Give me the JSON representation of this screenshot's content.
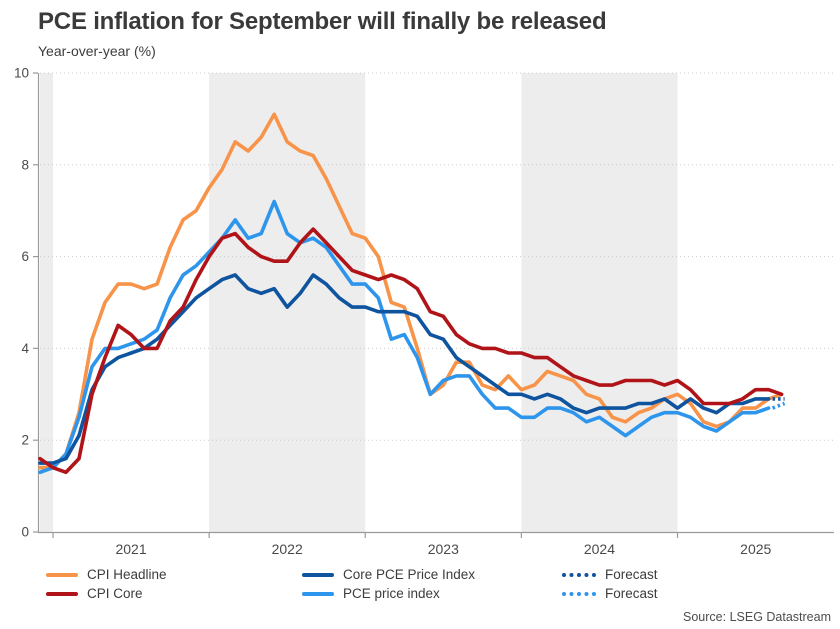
{
  "title": "PCE inflation for September will finally be released",
  "subtitle": "Year-over-year (%)",
  "source": "Source: LSEG Datastream",
  "colors": {
    "cpi_headline": "#f7944a",
    "cpi_core": "#b01418",
    "core_pce": "#0f549e",
    "pce": "#2e95ec",
    "band": "#ededed",
    "gridline": "#cccccc",
    "axis": "#9a9a9a",
    "tick_label": "#4a4a4a"
  },
  "legend": [
    {
      "label": "CPI Headline",
      "color": "#f7944a",
      "style": "solid"
    },
    {
      "label": "CPI Core",
      "color": "#b01418",
      "style": "solid"
    },
    {
      "label": "Core PCE Price Index",
      "color": "#0f549e",
      "style": "solid"
    },
    {
      "label": "PCE price index",
      "color": "#2e95ec",
      "style": "solid"
    },
    {
      "label": "Forecast",
      "color": "#0f549e",
      "style": "dotted"
    },
    {
      "label": "Forecast",
      "color": "#2e95ec",
      "style": "dotted"
    }
  ],
  "chart_data": {
    "type": "line",
    "title": "PCE inflation for September will finally be released",
    "ylabel": "Year-over-year (%)",
    "ylim": [
      0,
      10
    ],
    "y_ticks": [
      0,
      2,
      4,
      6,
      8,
      10
    ],
    "x_start_month": "2020-12",
    "x_end_month": "2025-09",
    "x_year_tick_labels": [
      "2021",
      "2022",
      "2023",
      "2024",
      "2025"
    ],
    "x_year_tick_month_idx": [
      1,
      13,
      25,
      37,
      49
    ],
    "shaded_band_month_idx": [
      [
        0,
        1
      ],
      [
        13,
        25
      ],
      [
        37,
        49
      ]
    ],
    "grid": "dotted-horizontal",
    "legend_position": "bottom",
    "series": [
      {
        "name": "CPI Headline",
        "color": "#f7944a",
        "values": [
          1.4,
          1.4,
          1.7,
          2.6,
          4.2,
          5.0,
          5.4,
          5.4,
          5.3,
          5.4,
          6.2,
          6.8,
          7.0,
          7.5,
          7.9,
          8.5,
          8.3,
          8.6,
          9.1,
          8.5,
          8.3,
          8.2,
          7.7,
          7.1,
          6.5,
          6.4,
          6.0,
          5.0,
          4.9,
          4.0,
          3.0,
          3.2,
          3.7,
          3.7,
          3.2,
          3.1,
          3.4,
          3.1,
          3.2,
          3.5,
          3.4,
          3.3,
          3.0,
          2.9,
          2.5,
          2.4,
          2.6,
          2.7,
          2.9,
          3.0,
          2.8,
          2.4,
          2.3,
          2.4,
          2.7,
          2.7,
          2.9,
          3.0
        ]
      },
      {
        "name": "PCE price index",
        "color": "#2e95ec",
        "values": [
          1.3,
          1.4,
          1.7,
          2.5,
          3.6,
          4.0,
          4.0,
          4.1,
          4.2,
          4.4,
          5.1,
          5.6,
          5.8,
          6.1,
          6.4,
          6.8,
          6.4,
          6.5,
          7.2,
          6.5,
          6.3,
          6.4,
          6.2,
          5.8,
          5.4,
          5.4,
          5.1,
          4.2,
          4.3,
          3.8,
          3.0,
          3.3,
          3.4,
          3.4,
          3.0,
          2.7,
          2.7,
          2.5,
          2.5,
          2.7,
          2.7,
          2.6,
          2.4,
          2.5,
          2.3,
          2.1,
          2.3,
          2.5,
          2.6,
          2.6,
          2.5,
          2.3,
          2.2,
          2.4,
          2.6,
          2.6,
          2.7
        ],
        "forecast_value": 2.8
      },
      {
        "name": "Core PCE Price Index",
        "color": "#0f549e",
        "values": [
          1.5,
          1.5,
          1.6,
          2.1,
          3.1,
          3.6,
          3.8,
          3.9,
          4.0,
          4.2,
          4.5,
          4.8,
          5.1,
          5.3,
          5.5,
          5.6,
          5.3,
          5.2,
          5.3,
          4.9,
          5.2,
          5.6,
          5.4,
          5.1,
          4.9,
          4.9,
          4.8,
          4.8,
          4.8,
          4.7,
          4.3,
          4.2,
          3.8,
          3.6,
          3.4,
          3.2,
          3.0,
          3.0,
          2.9,
          3.0,
          2.9,
          2.7,
          2.6,
          2.7,
          2.7,
          2.7,
          2.8,
          2.8,
          2.9,
          2.7,
          2.9,
          2.7,
          2.6,
          2.8,
          2.8,
          2.9,
          2.9
        ],
        "forecast_value": 2.9
      },
      {
        "name": "CPI Core",
        "color": "#b01418",
        "values": [
          1.6,
          1.4,
          1.3,
          1.6,
          3.0,
          3.8,
          4.5,
          4.3,
          4.0,
          4.0,
          4.6,
          4.9,
          5.5,
          6.0,
          6.4,
          6.5,
          6.2,
          6.0,
          5.9,
          5.9,
          6.3,
          6.6,
          6.3,
          6.0,
          5.7,
          5.6,
          5.5,
          5.6,
          5.5,
          5.3,
          4.8,
          4.7,
          4.3,
          4.1,
          4.0,
          4.0,
          3.9,
          3.9,
          3.8,
          3.8,
          3.6,
          3.4,
          3.3,
          3.2,
          3.2,
          3.3,
          3.3,
          3.3,
          3.2,
          3.3,
          3.1,
          2.8,
          2.8,
          2.8,
          2.9,
          3.1,
          3.1,
          3.0
        ]
      }
    ]
  }
}
